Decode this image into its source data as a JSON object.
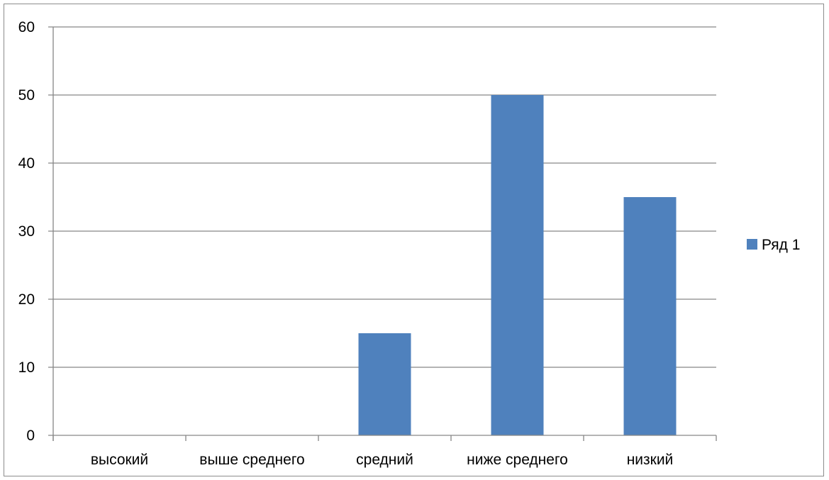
{
  "chart_data": {
    "type": "bar",
    "categories": [
      "высокий",
      "выше среднего",
      "средний",
      "ниже среднего",
      "низкий"
    ],
    "series": [
      {
        "name": "Ряд 1",
        "values": [
          0,
          0,
          15,
          50,
          35
        ]
      }
    ],
    "ylim": [
      0,
      60
    ],
    "yticks": [
      "0",
      "10",
      "20",
      "30",
      "40",
      "50",
      "60"
    ],
    "grid": true,
    "legend": "right",
    "colors": {
      "bar": "#4f81bd",
      "grid": "#868686",
      "axis": "#868686"
    }
  }
}
